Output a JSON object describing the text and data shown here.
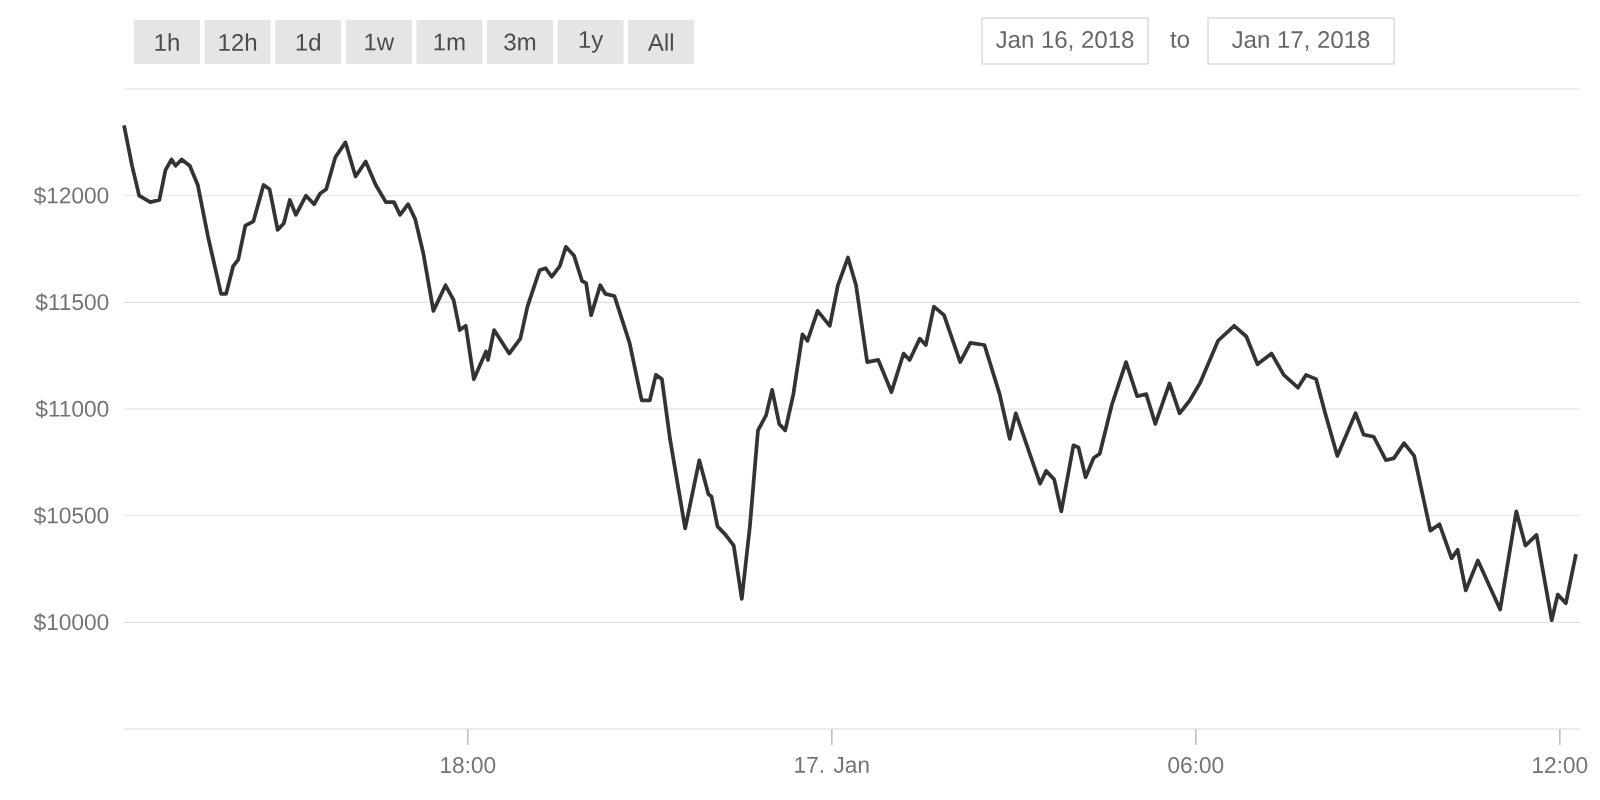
{
  "chart_data": {
    "type": "line",
    "color": "#333333",
    "grid": "y",
    "marker": "none",
    "line_style": "solid",
    "xlim": [
      "2018-01-16T12:20",
      "2018-01-17T12:20"
    ],
    "ylim": [
      9500,
      12500
    ],
    "xticks": [
      {
        "value": "2018-01-16T18:00",
        "label": "18:00"
      },
      {
        "value": "2018-01-17T00:00",
        "label": "17. Jan"
      },
      {
        "value": "2018-01-17T06:00",
        "label": "06:00"
      },
      {
        "value": "2018-01-17T12:00",
        "label": "12:00"
      }
    ],
    "yticks": [
      {
        "value": 10000,
        "label": "$10000"
      },
      {
        "value": 10500,
        "label": "$10500"
      },
      {
        "value": 11000,
        "label": "$11000"
      },
      {
        "value": 11500,
        "label": "$11500"
      },
      {
        "value": 12000,
        "label": "$12000"
      },
      {
        "value": 12500,
        "label": null
      }
    ],
    "annotations": [
      "1h",
      "12h",
      "1d",
      "1w",
      "1m",
      "3m",
      "1y",
      "All",
      "Jan 16, 2018",
      "to",
      "Jan 17, 2018"
    ],
    "x": [
      "2018-01-16T12:20",
      "2018-01-16T12:28",
      "2018-01-16T12:35",
      "2018-01-16T12:46",
      "2018-01-16T12:55",
      "2018-01-16T13:01",
      "2018-01-16T13:07",
      "2018-01-16T13:11",
      "2018-01-16T13:17",
      "2018-01-16T13:25",
      "2018-01-16T13:33",
      "2018-01-16T13:43",
      "2018-01-16T13:56",
      "2018-01-16T14:01",
      "2018-01-16T14:08",
      "2018-01-16T14:13",
      "2018-01-16T14:20",
      "2018-01-16T14:28",
      "2018-01-16T14:38",
      "2018-01-16T14:44",
      "2018-01-16T14:52",
      "2018-01-16T14:58",
      "2018-01-16T15:04",
      "2018-01-16T15:10",
      "2018-01-16T15:20",
      "2018-01-16T15:28",
      "2018-01-16T15:34",
      "2018-01-16T15:40",
      "2018-01-16T15:49",
      "2018-01-16T15:59",
      "2018-01-16T16:09",
      "2018-01-16T16:19",
      "2018-01-16T16:29",
      "2018-01-16T16:39",
      "2018-01-16T16:47",
      "2018-01-16T16:53",
      "2018-01-16T17:01",
      "2018-01-16T17:08",
      "2018-01-16T17:16",
      "2018-01-16T17:26",
      "2018-01-16T17:38",
      "2018-01-16T17:46",
      "2018-01-16T17:52",
      "2018-01-16T17:58",
      "2018-01-16T18:06",
      "2018-01-16T18:18",
      "2018-01-16T18:20",
      "2018-01-16T18:26",
      "2018-01-16T18:41",
      "2018-01-16T18:52",
      "2018-01-16T18:59",
      "2018-01-16T19:11",
      "2018-01-16T19:17",
      "2018-01-16T19:23",
      "2018-01-16T19:31",
      "2018-01-16T19:37",
      "2018-01-16T19:45",
      "2018-01-16T19:53",
      "2018-01-16T19:57",
      "2018-01-16T20:02",
      "2018-01-16T20:11",
      "2018-01-16T20:16",
      "2018-01-16T20:25",
      "2018-01-16T20:40",
      "2018-01-16T20:52",
      "2018-01-16T21:00",
      "2018-01-16T21:06",
      "2018-01-16T21:12",
      "2018-01-16T21:20",
      "2018-01-16T21:35",
      "2018-01-16T21:49",
      "2018-01-16T21:58",
      "2018-01-16T22:01",
      "2018-01-16T22:07",
      "2018-01-16T22:15",
      "2018-01-16T22:23",
      "2018-01-16T22:31",
      "2018-01-16T22:39",
      "2018-01-16T22:47",
      "2018-01-16T22:55",
      "2018-01-16T23:01",
      "2018-01-16T23:08",
      "2018-01-16T23:14",
      "2018-01-16T23:22",
      "2018-01-16T23:31",
      "2018-01-16T23:36",
      "2018-01-16T23:46",
      "2018-01-16T23:58",
      "2018-01-17T00:06",
      "2018-01-17T00:16",
      "2018-01-17T00:24",
      "2018-01-17T00:35",
      "2018-01-17T00:46",
      "2018-01-17T00:59",
      "2018-01-17T01:11",
      "2018-01-17T01:17",
      "2018-01-17T01:27",
      "2018-01-17T01:33",
      "2018-01-17T01:41",
      "2018-01-17T01:51",
      "2018-01-17T02:07",
      "2018-01-17T02:17",
      "2018-01-17T02:31",
      "2018-01-17T02:46",
      "2018-01-17T02:56",
      "2018-01-17T03:02",
      "2018-01-17T03:26",
      "2018-01-17T03:32",
      "2018-01-17T03:40",
      "2018-01-17T03:47",
      "2018-01-17T03:59",
      "2018-01-17T04:04",
      "2018-01-17T04:11",
      "2018-01-17T04:19",
      "2018-01-17T04:25",
      "2018-01-17T04:37",
      "2018-01-17T04:51",
      "2018-01-17T05:02",
      "2018-01-17T05:11",
      "2018-01-17T05:20",
      "2018-01-17T05:34",
      "2018-01-17T05:44",
      "2018-01-17T05:54",
      "2018-01-17T06:04",
      "2018-01-17T06:22",
      "2018-01-17T06:38",
      "2018-01-17T06:50",
      "2018-01-17T07:01",
      "2018-01-17T07:15",
      "2018-01-17T07:27",
      "2018-01-17T07:41",
      "2018-01-17T07:49",
      "2018-01-17T07:59",
      "2018-01-17T08:08",
      "2018-01-17T08:20",
      "2018-01-17T08:38",
      "2018-01-17T08:46",
      "2018-01-17T08:56",
      "2018-01-17T09:08",
      "2018-01-17T09:16",
      "2018-01-17T09:26",
      "2018-01-17T09:36",
      "2018-01-17T09:52",
      "2018-01-17T10:01",
      "2018-01-17T10:13",
      "2018-01-17T10:19",
      "2018-01-17T10:27",
      "2018-01-17T10:39",
      "2018-01-17T11:01",
      "2018-01-17T11:17",
      "2018-01-17T11:26",
      "2018-01-17T11:37",
      "2018-01-17T11:52",
      "2018-01-17T11:58",
      "2018-01-17T12:06",
      "2018-01-17T12:16"
    ],
    "values": [
      12330,
      12140,
      12000,
      11970,
      11980,
      12120,
      12170,
      12140,
      12170,
      12140,
      12050,
      11810,
      11540,
      11540,
      11670,
      11700,
      11860,
      11880,
      12050,
      12030,
      11840,
      11870,
      11980,
      11910,
      12000,
      11960,
      12010,
      12030,
      12180,
      12250,
      12090,
      12160,
      12050,
      11970,
      11970,
      11910,
      11960,
      11890,
      11730,
      11460,
      11580,
      11510,
      11370,
      11390,
      11140,
      11270,
      11230,
      11370,
      11260,
      11330,
      11480,
      11650,
      11660,
      11620,
      11670,
      11760,
      11720,
      11600,
      11590,
      11440,
      11580,
      11540,
      11530,
      11310,
      11040,
      11040,
      11160,
      11140,
      10860,
      10440,
      10760,
      10600,
      10590,
      10450,
      10410,
      10360,
      10110,
      10450,
      10900,
      10970,
      11090,
      10930,
      10900,
      11070,
      11350,
      11320,
      11460,
      11390,
      11580,
      11710,
      11580,
      11220,
      11230,
      11080,
      11260,
      11230,
      11330,
      11300,
      11480,
      11440,
      11220,
      11310,
      11300,
      11070,
      10860,
      10980,
      10650,
      10710,
      10670,
      10520,
      10830,
      10820,
      10680,
      10770,
      10790,
      11020,
      11220,
      11060,
      11070,
      10930,
      11120,
      10980,
      11040,
      11120,
      11320,
      11390,
      11340,
      11210,
      11260,
      11160,
      11100,
      11160,
      11140,
      10980,
      10780,
      10980,
      10880,
      10870,
      10760,
      10770,
      10840,
      10780,
      10430,
      10460,
      10300,
      10340,
      10150,
      10290,
      10060,
      10520,
      10360,
      10410,
      10010,
      10130,
      10090,
      10320
    ]
  }
}
